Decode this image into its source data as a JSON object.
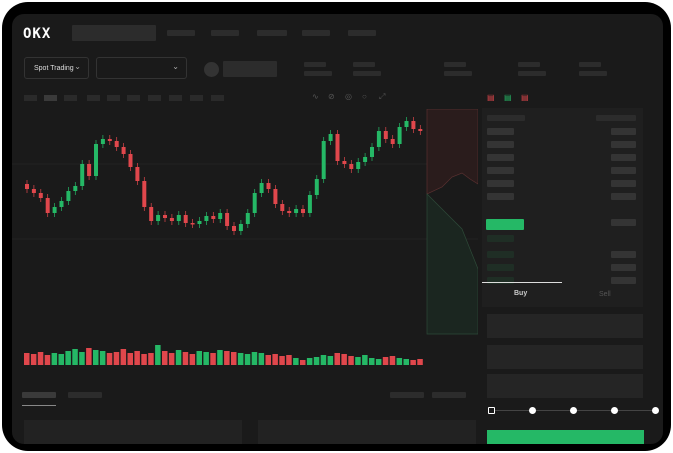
{
  "header": {
    "logo": "OKX"
  },
  "market": {
    "mode_label": "Spot Trading",
    "pair_value": ""
  },
  "trade": {
    "buy_tab": "Buy",
    "sell_tab": "Sell",
    "leverage_steps": 5,
    "selected_step": 0
  },
  "colors": {
    "up": "#25b866",
    "down": "#e0474c",
    "background": "#1a1a1a"
  },
  "icons": [
    "chevron-down-icon",
    "orderbook-both-icon",
    "orderbook-bids-icon",
    "orderbook-asks-icon",
    "line-icon",
    "pen-icon",
    "circle-icon",
    "expand-icon"
  ],
  "chart_data": {
    "type": "candlestick",
    "candles": [
      [
        95,
        90
      ],
      [
        90,
        86
      ],
      [
        86,
        81
      ],
      [
        81,
        66
      ],
      [
        66,
        72
      ],
      [
        72,
        78
      ],
      [
        78,
        88
      ],
      [
        88,
        93
      ],
      [
        93,
        115
      ],
      [
        115,
        103
      ],
      [
        103,
        135
      ],
      [
        135,
        140
      ],
      [
        140,
        138
      ],
      [
        138,
        132
      ],
      [
        132,
        125
      ],
      [
        125,
        112
      ],
      [
        112,
        98
      ],
      [
        98,
        72
      ],
      [
        72,
        58
      ],
      [
        58,
        64
      ],
      [
        64,
        61
      ],
      [
        61,
        58
      ],
      [
        58,
        64
      ],
      [
        64,
        56
      ],
      [
        56,
        55
      ],
      [
        55,
        58
      ],
      [
        58,
        63
      ],
      [
        63,
        60
      ],
      [
        60,
        66
      ],
      [
        66,
        53
      ],
      [
        53,
        48
      ],
      [
        48,
        55
      ],
      [
        55,
        66
      ],
      [
        66,
        86
      ],
      [
        86,
        96
      ],
      [
        96,
        90
      ],
      [
        90,
        75
      ],
      [
        75,
        68
      ],
      [
        68,
        66
      ],
      [
        66,
        70
      ],
      [
        70,
        66
      ],
      [
        66,
        84
      ],
      [
        84,
        100
      ],
      [
        100,
        138
      ],
      [
        138,
        145
      ],
      [
        145,
        118
      ],
      [
        118,
        115
      ],
      [
        115,
        110
      ],
      [
        110,
        117
      ],
      [
        117,
        122
      ],
      [
        122,
        132
      ],
      [
        132,
        148
      ],
      [
        148,
        140
      ],
      [
        140,
        135
      ],
      [
        135,
        152
      ],
      [
        152,
        158
      ],
      [
        158,
        150
      ],
      [
        150,
        148
      ]
    ],
    "volume": [
      12,
      11,
      13,
      10,
      12,
      11,
      14,
      16,
      13,
      17,
      15,
      14,
      12,
      13,
      16,
      12,
      14,
      11,
      12,
      20,
      14,
      12,
      15,
      13,
      11,
      14,
      13,
      12,
      15,
      14,
      13,
      12,
      11,
      13,
      12,
      10,
      11,
      9,
      10,
      7,
      5,
      7,
      8,
      10,
      9,
      12,
      11,
      9,
      8,
      10,
      7,
      6,
      8,
      9,
      7,
      6,
      5,
      6
    ]
  }
}
